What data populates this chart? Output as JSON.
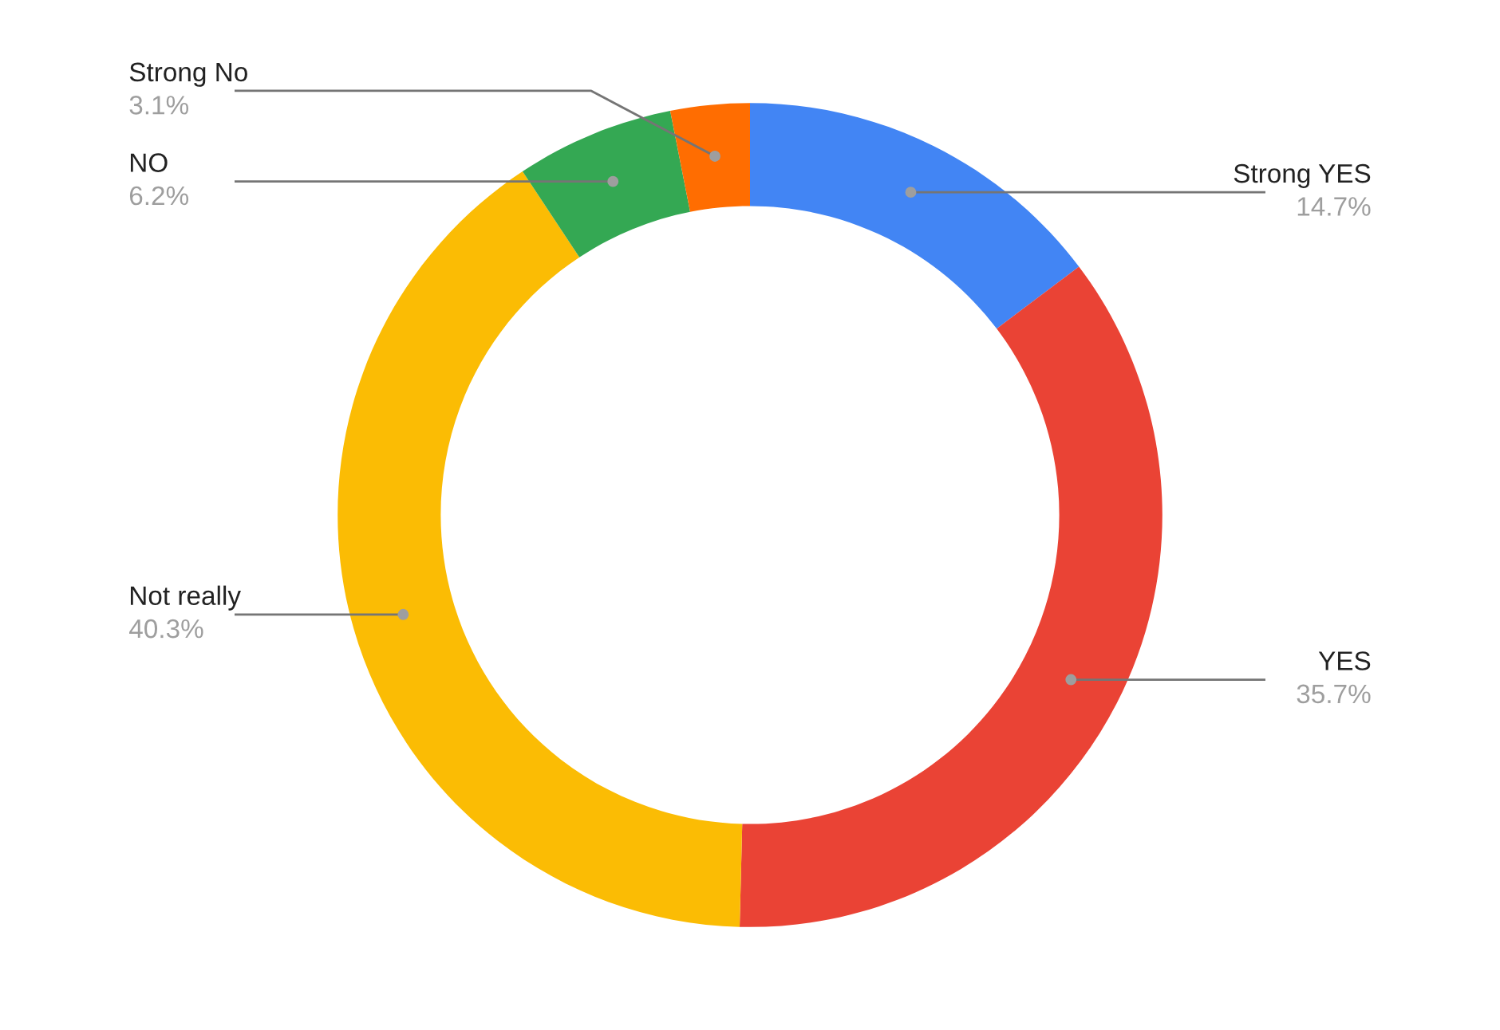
{
  "chart_data": {
    "type": "donut",
    "categories": [
      "Strong YES",
      "YES",
      "Not really",
      "NO",
      "Strong No"
    ],
    "values": [
      14.7,
      35.7,
      40.3,
      6.2,
      3.1
    ],
    "colors": [
      "#4285f4",
      "#ea4335",
      "#fbbc04",
      "#34a853",
      "#ff6d01"
    ],
    "value_labels": [
      "14.7%",
      "35.7%",
      "40.3%",
      "6.2%",
      "3.1%"
    ],
    "legend": false
  }
}
